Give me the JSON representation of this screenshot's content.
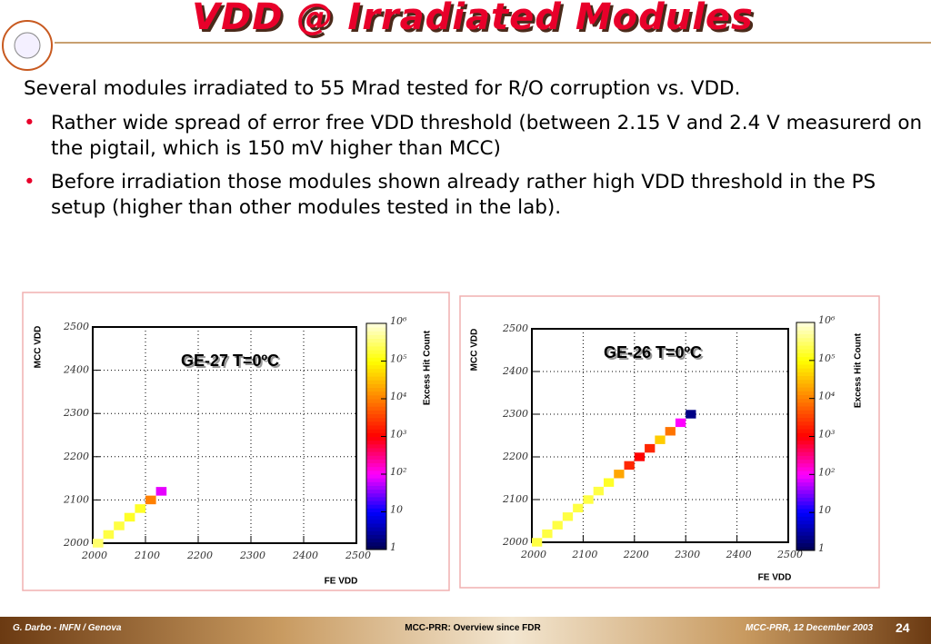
{
  "title": "VDD @ Irradiated Modules",
  "intro": "Several modules irradiated to 55 Mrad tested for R/O corruption vs. VDD.",
  "bullets": [
    "Rather wide spread of error free VDD threshold (between 2.15 V and 2.4 V measurerd on the pigtail, which is 150 mV higher than MCC)",
    "Before irradiation those modules shown already rather high VDD threshold in the PS setup (higher than other modules tested in the lab)."
  ],
  "footer": {
    "left": "G. Darbo - INFN / Genova",
    "center": "MCC-PRR: Overview since FDR",
    "right": "MCC-PRR, 12 December 2003",
    "page": "24"
  },
  "chart_data": [
    {
      "type": "heatmap",
      "title": "GE-27 T=0ºC",
      "xlabel": "FE VDD",
      "ylabel": "MCC VDD",
      "zlabel": "Excess Hit Count",
      "x": [
        2010,
        2030,
        2050,
        2070,
        2090,
        2110,
        2130
      ],
      "y": [
        2000,
        2020,
        2040,
        2060,
        2080,
        2100,
        2120
      ],
      "counts": [
        300000,
        200000,
        200000,
        150000,
        150000,
        10000,
        80
      ],
      "xbin": 20,
      "ybin": 20,
      "xlim": [
        2000,
        2500
      ],
      "xticks": [
        2000,
        2100,
        2200,
        2300,
        2400,
        2500
      ],
      "ylim": [
        2000,
        2500
      ],
      "yticks": [
        2000,
        2100,
        2200,
        2300,
        2400,
        2500
      ],
      "zlim": [
        1,
        1000000
      ],
      "zlog": true,
      "zticks": [
        1,
        10,
        {
          "value": 100,
          "label": "10²"
        },
        {
          "value": 1000,
          "label": "10³"
        },
        {
          "value": 10000,
          "label": "10⁴"
        },
        {
          "value": 100000,
          "label": "10⁵"
        },
        {
          "value": 1000000,
          "label": "10⁶"
        }
      ],
      "colormap": [
        "#000050",
        "#0000ff",
        "#ff00ff",
        "#ff0000",
        "#ff8000",
        "#ffff00",
        "#ffffe0"
      ],
      "grid": true
    },
    {
      "type": "heatmap",
      "title": "GE-26 T=0ºC",
      "xlabel": "FE VDD",
      "ylabel": "MCC VDD",
      "zlabel": "Excess Hit Count",
      "x": [
        2010,
        2030,
        2050,
        2070,
        2090,
        2110,
        2130,
        2150,
        2170,
        2190,
        2210,
        2230,
        2250,
        2270,
        2290,
        2310
      ],
      "y": [
        2000,
        2020,
        2040,
        2060,
        2080,
        2100,
        2120,
        2140,
        2160,
        2180,
        2200,
        2220,
        2240,
        2260,
        2280,
        2300
      ],
      "counts": [
        200000,
        200000,
        200000,
        200000,
        200000,
        200000,
        200000,
        150000,
        20000,
        2000,
        1000,
        2000,
        40000,
        8000,
        100,
        2
      ],
      "xbin": 20,
      "ybin": 20,
      "xlim": [
        2000,
        2500
      ],
      "xticks": [
        2000,
        2100,
        2200,
        2300,
        2400,
        2500
      ],
      "ylim": [
        2000,
        2500
      ],
      "yticks": [
        2000,
        2100,
        2200,
        2300,
        2400,
        2500
      ],
      "zlim": [
        1,
        1000000
      ],
      "zlog": true,
      "zticks": [
        1,
        10,
        {
          "value": 100,
          "label": "10²"
        },
        {
          "value": 1000,
          "label": "10³"
        },
        {
          "value": 10000,
          "label": "10⁴"
        },
        {
          "value": 100000,
          "label": "10⁵"
        },
        {
          "value": 1000000,
          "label": "10⁶"
        }
      ],
      "colormap": [
        "#000050",
        "#0000ff",
        "#ff00ff",
        "#ff0000",
        "#ff8000",
        "#ffff00",
        "#ffffe0"
      ],
      "grid": true
    }
  ]
}
